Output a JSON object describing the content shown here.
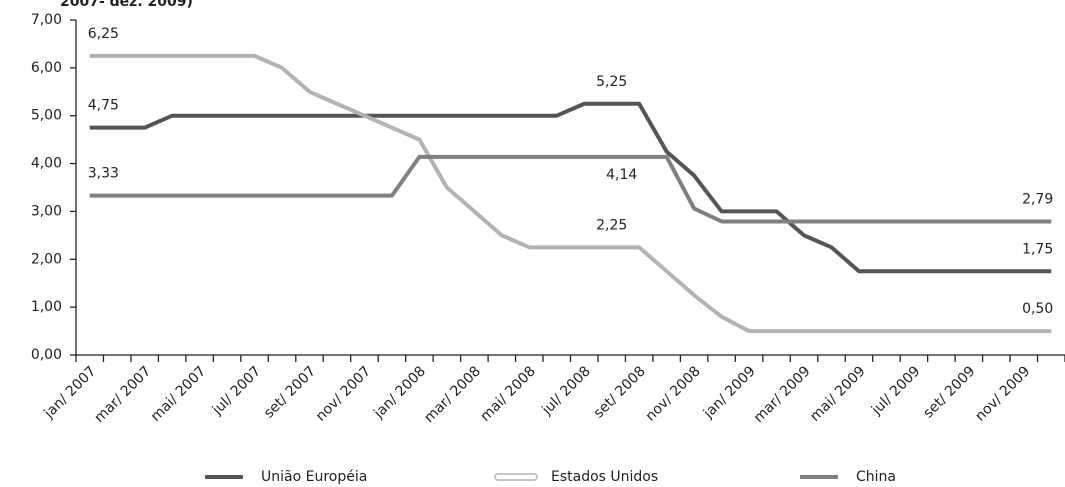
{
  "chart_data": {
    "type": "line",
    "title": "2007- dez. 2009)",
    "categories": [
      "jan/ 2007",
      null,
      "mar/ 2007",
      null,
      "mai/ 2007",
      null,
      "jul/ 2007",
      null,
      "set/ 2007",
      null,
      "nov/ 2007",
      null,
      "jan/ 2008",
      null,
      "mar/ 2008",
      null,
      "mai/ 2008",
      null,
      "jul/ 2008",
      null,
      "set/ 2008",
      null,
      "nov/ 2008",
      null,
      "jan/ 2009",
      null,
      "mar/ 2009",
      null,
      "mai/ 2009",
      null,
      "jul/ 2009",
      null,
      "set/ 2009",
      null,
      "nov/ 2009",
      null
    ],
    "series": [
      {
        "name": "União Européia",
        "color": "#555555",
        "values": [
          4.75,
          4.75,
          4.75,
          5.0,
          5.0,
          5.0,
          5.0,
          5.0,
          5.0,
          5.0,
          5.0,
          5.0,
          5.0,
          5.0,
          5.0,
          5.0,
          5.0,
          5.0,
          5.25,
          5.25,
          5.25,
          4.25,
          3.75,
          3.0,
          3.0,
          3.0,
          2.5,
          2.25,
          1.75,
          1.75,
          1.75,
          1.75,
          1.75,
          1.75,
          1.75,
          1.75
        ],
        "value_labels": [
          "4,75",
          null,
          null,
          null,
          null,
          null,
          null,
          null,
          null,
          null,
          null,
          null,
          null,
          null,
          null,
          null,
          null,
          null,
          null,
          "5,25",
          null,
          null,
          null,
          null,
          null,
          null,
          null,
          null,
          null,
          null,
          null,
          null,
          null,
          null,
          null,
          "1,75"
        ]
      },
      {
        "name": "Estados Unidos",
        "color": "#b3b3b3",
        "values": [
          6.25,
          6.25,
          6.25,
          6.25,
          6.25,
          6.25,
          6.25,
          6.0,
          5.5,
          5.25,
          5.0,
          4.75,
          4.5,
          3.5,
          3.0,
          2.5,
          2.25,
          2.25,
          2.25,
          2.25,
          2.25,
          1.75,
          1.25,
          0.8,
          0.5,
          0.5,
          0.5,
          0.5,
          0.5,
          0.5,
          0.5,
          0.5,
          0.5,
          0.5,
          0.5,
          0.5
        ],
        "value_labels": [
          "6,25",
          null,
          null,
          null,
          null,
          null,
          null,
          null,
          null,
          null,
          null,
          null,
          null,
          null,
          null,
          null,
          null,
          null,
          null,
          "2,25",
          null,
          null,
          null,
          null,
          null,
          null,
          null,
          null,
          null,
          null,
          null,
          null,
          null,
          null,
          null,
          "0,50"
        ]
      },
      {
        "name": "China",
        "color": "#808080",
        "values": [
          3.33,
          3.33,
          3.33,
          3.33,
          3.33,
          3.33,
          3.33,
          3.33,
          3.33,
          3.33,
          3.33,
          3.33,
          4.14,
          4.14,
          4.14,
          4.14,
          4.14,
          4.14,
          4.14,
          4.14,
          4.14,
          4.14,
          3.06,
          2.79,
          2.79,
          2.79,
          2.79,
          2.79,
          2.79,
          2.79,
          2.79,
          2.79,
          2.79,
          2.79,
          2.79,
          2.79
        ],
        "value_labels": [
          "3,33",
          null,
          null,
          null,
          null,
          null,
          null,
          null,
          null,
          null,
          null,
          null,
          null,
          null,
          null,
          null,
          null,
          null,
          null,
          "4,14",
          null,
          null,
          null,
          null,
          null,
          null,
          null,
          null,
          null,
          null,
          null,
          null,
          null,
          null,
          null,
          "2,79"
        ]
      }
    ],
    "ylim": [
      0,
      7
    ],
    "yticks": [
      {
        "value": 0,
        "label": "0,00"
      },
      {
        "value": 1,
        "label": "1,00"
      },
      {
        "value": 2,
        "label": "2,00"
      },
      {
        "value": 3,
        "label": "3,00"
      },
      {
        "value": 4,
        "label": "4,00"
      },
      {
        "value": 5,
        "label": "5,00"
      },
      {
        "value": 6,
        "label": "6,00"
      },
      {
        "value": 7,
        "label": "7,00"
      }
    ],
    "grid": false,
    "legend": "bottom"
  }
}
